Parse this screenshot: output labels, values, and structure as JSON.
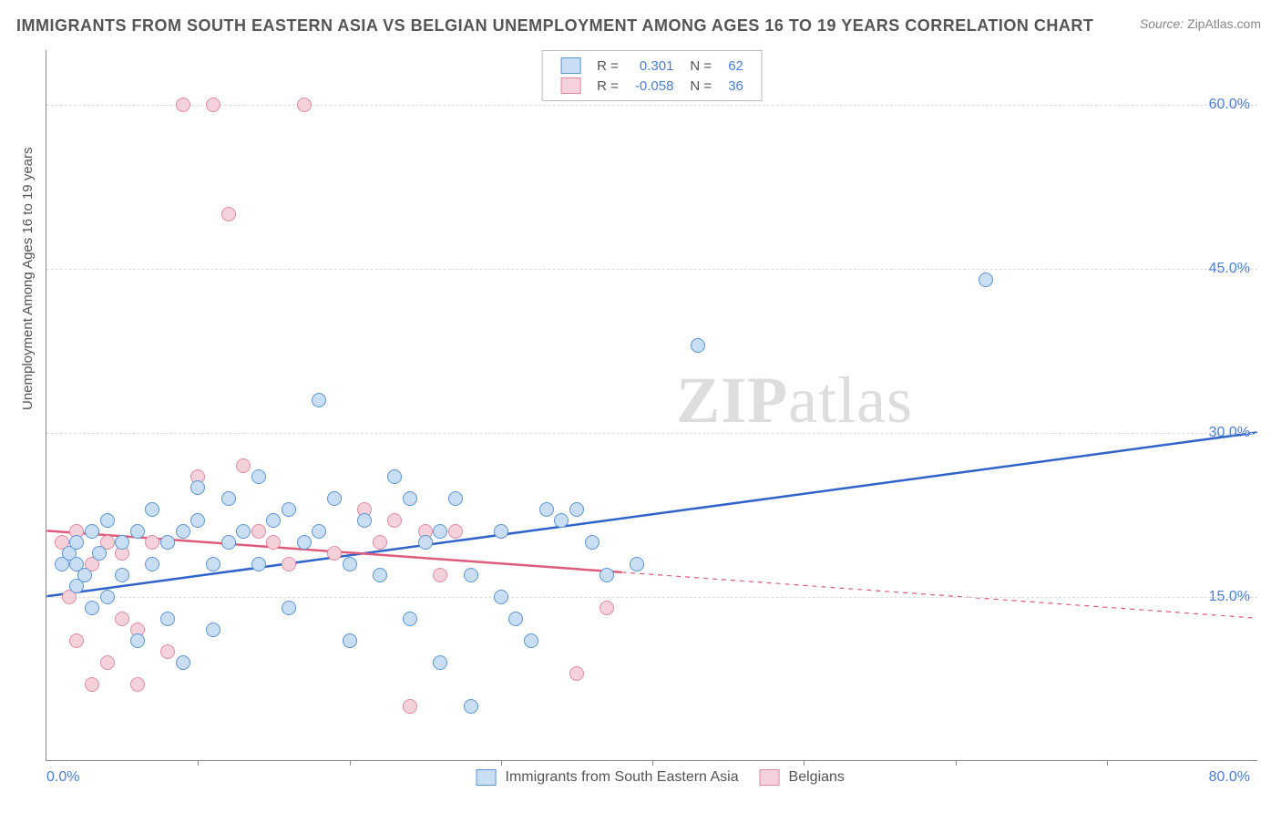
{
  "title": "IMMIGRANTS FROM SOUTH EASTERN ASIA VS BELGIAN UNEMPLOYMENT AMONG AGES 16 TO 19 YEARS CORRELATION CHART",
  "source_label": "Source:",
  "source_value": "ZipAtlas.com",
  "y_axis_label": "Unemployment Among Ages 16 to 19 years",
  "watermark_bold": "ZIP",
  "watermark_light": "atlas",
  "chart": {
    "type": "scatter",
    "xlim": [
      0,
      80
    ],
    "ylim": [
      0,
      65
    ],
    "x_tick_left": "0.0%",
    "x_tick_right": "80.0%",
    "x_minor_tick_step": 10,
    "y_ticks": [
      {
        "value": 15,
        "label": "15.0%"
      },
      {
        "value": 30,
        "label": "30.0%"
      },
      {
        "value": 45,
        "label": "45.0%"
      },
      {
        "value": 60,
        "label": "60.0%"
      }
    ],
    "grid_color": "#dddddd",
    "background_color": "#ffffff",
    "axis_color": "#888888",
    "tick_label_color": "#4a7fd8",
    "point_radius": 8,
    "point_stroke_width": 1.5,
    "series": [
      {
        "key": "immigrants",
        "label": "Immigrants from South Eastern Asia",
        "fill": "#c9def2",
        "stroke": "#5a96d6",
        "R": "0.301",
        "N": "62",
        "trend": {
          "x1": 0,
          "y1": 15,
          "x2": 80,
          "y2": 30,
          "color": "#2f63c9",
          "width": 2.5,
          "solid_until_x": 80
        },
        "points": [
          [
            1,
            18
          ],
          [
            1.5,
            19
          ],
          [
            2,
            20
          ],
          [
            2,
            16
          ],
          [
            2.5,
            17
          ],
          [
            3,
            21
          ],
          [
            3,
            14
          ],
          [
            3.5,
            19
          ],
          [
            4,
            22
          ],
          [
            4,
            15
          ],
          [
            5,
            17
          ],
          [
            5,
            20
          ],
          [
            6,
            11
          ],
          [
            6,
            21
          ],
          [
            7,
            18
          ],
          [
            7,
            23
          ],
          [
            8,
            20
          ],
          [
            8,
            13
          ],
          [
            9,
            21
          ],
          [
            9,
            9
          ],
          [
            10,
            22
          ],
          [
            10,
            25
          ],
          [
            11,
            18
          ],
          [
            11,
            12
          ],
          [
            12,
            24
          ],
          [
            12,
            20
          ],
          [
            13,
            21
          ],
          [
            14,
            18
          ],
          [
            14,
            26
          ],
          [
            15,
            22
          ],
          [
            16,
            23
          ],
          [
            16,
            14
          ],
          [
            17,
            20
          ],
          [
            18,
            33
          ],
          [
            18,
            21
          ],
          [
            19,
            24
          ],
          [
            20,
            18
          ],
          [
            20,
            11
          ],
          [
            21,
            22
          ],
          [
            22,
            17
          ],
          [
            23,
            26
          ],
          [
            24,
            24
          ],
          [
            24,
            13
          ],
          [
            25,
            20
          ],
          [
            26,
            9
          ],
          [
            26,
            21
          ],
          [
            27,
            24
          ],
          [
            28,
            17
          ],
          [
            28,
            5
          ],
          [
            30,
            15
          ],
          [
            30,
            21
          ],
          [
            31,
            13
          ],
          [
            32,
            11
          ],
          [
            33,
            23
          ],
          [
            34,
            22
          ],
          [
            35,
            23
          ],
          [
            36,
            20
          ],
          [
            37,
            17
          ],
          [
            39,
            18
          ],
          [
            43,
            38
          ],
          [
            62,
            44
          ],
          [
            2,
            18
          ]
        ]
      },
      {
        "key": "belgians",
        "label": "Belgians",
        "fill": "#f5d2db",
        "stroke": "#e28aa1",
        "R": "-0.058",
        "N": "36",
        "trend": {
          "x1": 0,
          "y1": 21,
          "x2": 80,
          "y2": 13,
          "color": "#e05a7c",
          "width": 2.5,
          "solid_until_x": 38
        },
        "points": [
          [
            1,
            20
          ],
          [
            1.5,
            15
          ],
          [
            2,
            21
          ],
          [
            2,
            11
          ],
          [
            3,
            18
          ],
          [
            3,
            7
          ],
          [
            4,
            20
          ],
          [
            4,
            9
          ],
          [
            5,
            19
          ],
          [
            5,
            13
          ],
          [
            6,
            12
          ],
          [
            6,
            7
          ],
          [
            7,
            20
          ],
          [
            8,
            10
          ],
          [
            8,
            20
          ],
          [
            9,
            60
          ],
          [
            10,
            26
          ],
          [
            11,
            60
          ],
          [
            12,
            50
          ],
          [
            13,
            27
          ],
          [
            14,
            21
          ],
          [
            15,
            20
          ],
          [
            16,
            18
          ],
          [
            17,
            60
          ],
          [
            19,
            19
          ],
          [
            20,
            11
          ],
          [
            21,
            23
          ],
          [
            22,
            20
          ],
          [
            23,
            22
          ],
          [
            24,
            5
          ],
          [
            25,
            21
          ],
          [
            26,
            17
          ],
          [
            27,
            21
          ],
          [
            30,
            21
          ],
          [
            35,
            8
          ],
          [
            37,
            14
          ]
        ]
      }
    ]
  },
  "legend_top": {
    "R_label": "R =",
    "N_label": "N ="
  }
}
